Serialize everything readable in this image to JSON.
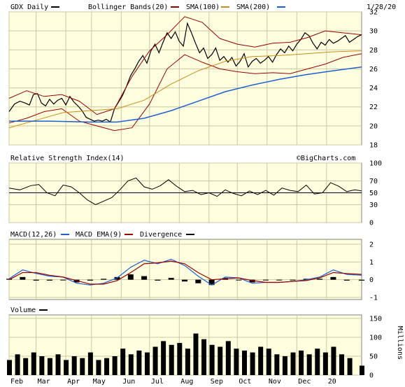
{
  "chart_data": {
    "type": "line",
    "title": "GDX Daily",
    "date_label": "1/28/20",
    "watermark": "©BigCharts.com",
    "x_labels": [
      "Feb",
      "Mar",
      "Apr",
      "May",
      "Jun",
      "Jul",
      "Aug",
      "Sep",
      "Oct",
      "Nov",
      "Dec",
      "20"
    ],
    "colors": {
      "panel_bg": "#ffffe0",
      "grid": "#c8c8a0",
      "price": "#000000",
      "bollinger": "#990000",
      "sma100": "#cc8a1a",
      "sma200": "#1f5fd0",
      "macd": "#1f5fd0",
      "macd_ema": "#990000",
      "volume": "#000000"
    },
    "price_panel": {
      "legend": [
        {
          "label": "GDX Daily",
          "color": "#000000"
        },
        {
          "label": "Bollinger Bands(20)",
          "color": "#990000"
        },
        {
          "label": "SMA(100)",
          "color": "#cc8a1a"
        },
        {
          "label": "SMA(200)",
          "color": "#1f5fd0"
        }
      ],
      "y_ticks": [
        "32",
        "30",
        "28",
        "26",
        "24",
        "22",
        "20",
        "18"
      ],
      "ylim": [
        18,
        32
      ],
      "series": [
        {
          "name": "GDX Daily",
          "x": [
            0,
            4,
            8,
            12,
            15,
            18,
            21,
            24,
            27,
            30,
            33,
            36,
            39,
            42,
            45,
            48,
            51,
            54,
            57,
            60,
            63,
            66,
            69,
            72,
            75,
            78,
            81,
            84,
            87,
            90,
            93,
            96,
            99,
            102,
            105,
            108,
            111,
            114,
            117,
            120,
            123,
            126,
            129,
            132,
            135,
            138,
            141,
            144,
            147,
            150,
            153,
            156,
            159,
            162,
            165,
            168,
            171,
            174,
            177,
            180,
            183,
            186,
            189,
            192,
            195,
            198,
            201,
            204,
            207,
            210,
            213,
            216,
            219,
            222,
            225,
            228,
            231,
            234,
            237,
            240,
            243,
            246,
            249,
            252,
            255,
            258,
            261
          ],
          "values": [
            21.5,
            22.3,
            22.6,
            22.4,
            22.2,
            23.3,
            23.4,
            22.4,
            22.1,
            22.8,
            22.3,
            22.7,
            22.9,
            22.2,
            23.1,
            22.5,
            22.1,
            21.6,
            20.9,
            20.7,
            20.5,
            20.6,
            20.5,
            20.7,
            20.4,
            21.8,
            22.5,
            23.2,
            24.2,
            25.3,
            26.0,
            26.8,
            27.4,
            26.6,
            27.9,
            28.6,
            27.7,
            28.8,
            29.8,
            29.2,
            29.9,
            28.9,
            28.4,
            30.8,
            29.8,
            28.7,
            27.7,
            28.2,
            27.1,
            27.5,
            28.2,
            26.9,
            27.3,
            26.7,
            27.2,
            26.3,
            26.8,
            27.6,
            26.2,
            26.8,
            27.1,
            26.6,
            26.9,
            27.3,
            26.7,
            27.5,
            28.1,
            27.7,
            28.4,
            27.9,
            28.6,
            29.1,
            29.8,
            29.5,
            28.7,
            28.1,
            28.8,
            28.5,
            29.1,
            28.7,
            28.9,
            29.2,
            29.5,
            28.8,
            29.1,
            29.4,
            29.6
          ]
        },
        {
          "name": "Bollinger Bands(20)",
          "x": [
            0,
            13,
            26,
            39,
            52,
            65,
            78,
            91,
            104,
            117,
            130,
            143,
            156,
            169,
            182,
            195,
            208,
            221,
            234,
            247,
            261
          ],
          "values": [
            22.9,
            23.7,
            23.1,
            23.3,
            22.6,
            21.2,
            21.8,
            25.2,
            27.9,
            29.6,
            31.5,
            30.9,
            29.2,
            28.6,
            28.3,
            28.7,
            28.8,
            29.3,
            30.0,
            29.8,
            29.6
          ]
        },
        {
          "name": "Bollinger Bands(20)",
          "x": [
            0,
            13,
            26,
            39,
            52,
            65,
            78,
            91,
            104,
            117,
            130,
            143,
            156,
            169,
            182,
            195,
            208,
            221,
            234,
            247,
            261
          ],
          "values": [
            20.3,
            20.8,
            21.5,
            21.8,
            20.5,
            20.0,
            19.5,
            19.8,
            22.3,
            26.0,
            27.5,
            26.7,
            26.0,
            25.7,
            25.5,
            25.6,
            25.5,
            26.0,
            26.5,
            27.2,
            27.6
          ]
        },
        {
          "name": "SMA(100)",
          "x": [
            0,
            20,
            40,
            60,
            80,
            100,
            120,
            140,
            160,
            180,
            200,
            220,
            240,
            261
          ],
          "values": [
            19.8,
            20.6,
            21.4,
            21.6,
            21.8,
            22.7,
            24.4,
            25.8,
            26.8,
            27.3,
            27.4,
            27.6,
            27.8,
            27.9
          ]
        },
        {
          "name": "SMA(200)",
          "x": [
            0,
            30,
            60,
            80,
            100,
            120,
            140,
            160,
            180,
            200,
            220,
            240,
            261
          ],
          "values": [
            20.5,
            20.5,
            20.4,
            20.4,
            20.8,
            21.6,
            22.6,
            23.6,
            24.3,
            24.9,
            25.4,
            25.8,
            26.2
          ]
        }
      ]
    },
    "rsi_panel": {
      "label": "Relative Strength Index(14)",
      "y_ticks": [
        "100",
        "70",
        "50",
        "30",
        "0"
      ],
      "ylim": [
        0,
        100
      ],
      "reference": 50,
      "x": [
        0,
        8,
        16,
        22,
        28,
        34,
        40,
        46,
        52,
        58,
        64,
        70,
        76,
        82,
        88,
        94,
        100,
        106,
        112,
        118,
        124,
        130,
        136,
        142,
        148,
        154,
        160,
        166,
        172,
        178,
        184,
        190,
        196,
        202,
        208,
        214,
        220,
        226,
        232,
        238,
        244,
        250,
        256,
        261
      ],
      "values": [
        58,
        55,
        62,
        64,
        50,
        45,
        63,
        60,
        50,
        38,
        30,
        36,
        42,
        55,
        70,
        75,
        60,
        56,
        62,
        72,
        61,
        52,
        54,
        47,
        50,
        44,
        55,
        49,
        45,
        53,
        47,
        54,
        46,
        58,
        54,
        52,
        63,
        48,
        50,
        67,
        61,
        52,
        55,
        53
      ]
    },
    "macd_panel": {
      "legend": [
        {
          "label": "MACD(12,26)",
          "color": "#1f5fd0"
        },
        {
          "label": "MACD EMA(9)",
          "color": "#990000"
        },
        {
          "label": "Divergence",
          "color": "#000000"
        }
      ],
      "y_ticks": [
        "2",
        "1",
        "0",
        "-1"
      ],
      "ylim": [
        -1,
        2
      ],
      "x": [
        0,
        10,
        20,
        30,
        40,
        50,
        60,
        70,
        80,
        90,
        100,
        110,
        120,
        130,
        140,
        150,
        160,
        170,
        180,
        190,
        200,
        210,
        220,
        230,
        240,
        250,
        261
      ],
      "macd": [
        0.05,
        0.55,
        0.35,
        0.2,
        0.15,
        -0.2,
        -0.3,
        -0.2,
        0.1,
        0.7,
        1.1,
        0.9,
        1.15,
        0.8,
        0.2,
        -0.3,
        0.15,
        0.1,
        -0.2,
        -0.15,
        -0.15,
        -0.1,
        0.0,
        0.15,
        0.55,
        0.3,
        0.25
      ],
      "signal": [
        0.0,
        0.4,
        0.4,
        0.25,
        0.15,
        -0.05,
        -0.25,
        -0.25,
        -0.05,
        0.4,
        0.9,
        0.95,
        1.05,
        0.9,
        0.4,
        0.0,
        0.05,
        0.1,
        -0.05,
        -0.15,
        -0.15,
        -0.1,
        -0.05,
        0.1,
        0.4,
        0.35,
        0.3
      ],
      "divergence": [
        0.05,
        0.15,
        -0.05,
        -0.05,
        0.0,
        -0.15,
        -0.05,
        0.05,
        0.15,
        0.3,
        0.2,
        -0.05,
        0.1,
        -0.1,
        -0.2,
        -0.3,
        0.1,
        0.0,
        -0.15,
        0.0,
        0.0,
        0.0,
        0.05,
        0.05,
        0.15,
        -0.05,
        -0.05
      ]
    },
    "volume_panel": {
      "label": "Volume",
      "y_ticks": [
        "150",
        "100",
        "50",
        "0"
      ],
      "unit": "Millions",
      "ylim": [
        0,
        150
      ],
      "x": [
        0,
        6,
        12,
        18,
        24,
        30,
        36,
        42,
        48,
        54,
        60,
        66,
        72,
        78,
        84,
        90,
        96,
        102,
        108,
        114,
        120,
        126,
        132,
        138,
        144,
        150,
        156,
        162,
        168,
        174,
        180,
        186,
        192,
        198,
        204,
        210,
        216,
        222,
        228,
        234,
        240,
        246,
        252,
        261
      ],
      "values": [
        40,
        55,
        45,
        60,
        50,
        45,
        55,
        40,
        50,
        45,
        60,
        40,
        45,
        50,
        70,
        55,
        65,
        60,
        75,
        90,
        80,
        85,
        70,
        110,
        95,
        80,
        75,
        90,
        70,
        65,
        60,
        75,
        70,
        55,
        50,
        60,
        65,
        55,
        70,
        60,
        75,
        55,
        45,
        25
      ]
    }
  }
}
